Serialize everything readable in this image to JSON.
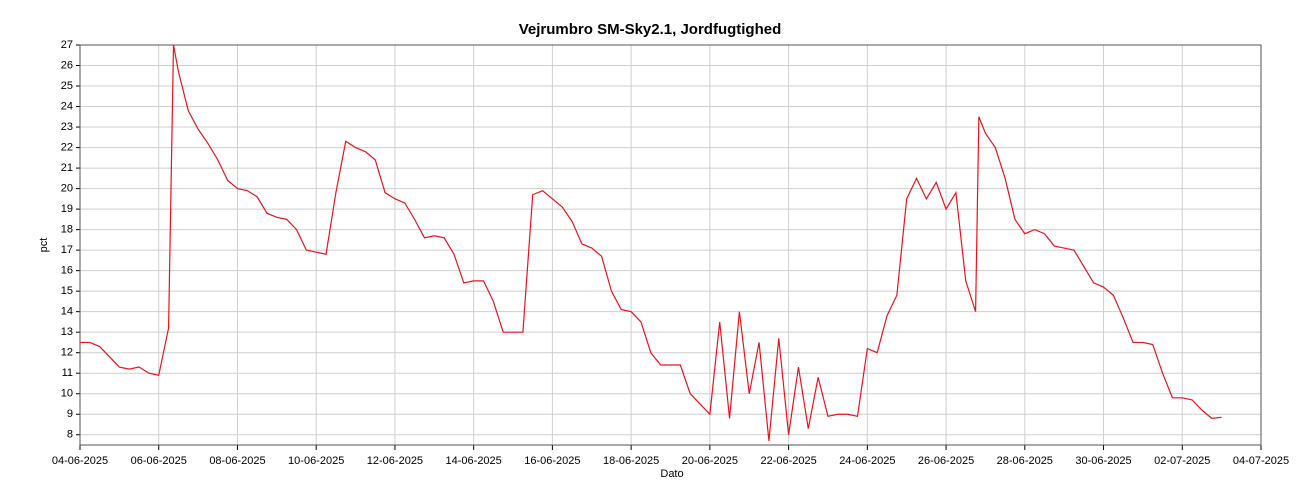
{
  "chart_data": {
    "type": "line",
    "title": "Vejrumbro SM-Sky2.1, Jordfugtighed",
    "x_label": "Dato",
    "y_label": "pct",
    "x": [
      "04-06-2025 00:00",
      "04-06-2025 06:00",
      "04-06-2025 12:00",
      "04-06-2025 18:00",
      "05-06-2025 00:00",
      "05-06-2025 06:00",
      "05-06-2025 12:00",
      "05-06-2025 18:00",
      "06-06-2025 00:00",
      "06-06-2025 06:00",
      "06-06-2025 09:00",
      "06-06-2025 12:00",
      "06-06-2025 18:00",
      "07-06-2025 00:00",
      "07-06-2025 06:00",
      "07-06-2025 12:00",
      "07-06-2025 18:00",
      "08-06-2025 00:00",
      "08-06-2025 06:00",
      "08-06-2025 12:00",
      "08-06-2025 18:00",
      "09-06-2025 00:00",
      "09-06-2025 06:00",
      "09-06-2025 12:00",
      "09-06-2025 18:00",
      "10-06-2025 00:00",
      "10-06-2025 06:00",
      "10-06-2025 12:00",
      "10-06-2025 18:00",
      "11-06-2025 00:00",
      "11-06-2025 06:00",
      "11-06-2025 12:00",
      "11-06-2025 18:00",
      "12-06-2025 00:00",
      "12-06-2025 06:00",
      "12-06-2025 12:00",
      "12-06-2025 18:00",
      "13-06-2025 00:00",
      "13-06-2025 06:00",
      "13-06-2025 12:00",
      "13-06-2025 18:00",
      "14-06-2025 00:00",
      "14-06-2025 06:00",
      "14-06-2025 12:00",
      "14-06-2025 18:00",
      "15-06-2025 00:00",
      "15-06-2025 06:00",
      "15-06-2025 12:00",
      "15-06-2025 18:00",
      "16-06-2025 00:00",
      "16-06-2025 06:00",
      "16-06-2025 12:00",
      "16-06-2025 18:00",
      "17-06-2025 00:00",
      "17-06-2025 06:00",
      "17-06-2025 12:00",
      "17-06-2025 18:00",
      "18-06-2025 00:00",
      "18-06-2025 06:00",
      "18-06-2025 12:00",
      "18-06-2025 18:00",
      "19-06-2025 00:00",
      "19-06-2025 06:00",
      "19-06-2025 12:00",
      "19-06-2025 18:00",
      "20-06-2025 00:00",
      "20-06-2025 06:00",
      "20-06-2025 12:00",
      "20-06-2025 18:00",
      "21-06-2025 00:00",
      "21-06-2025 06:00",
      "21-06-2025 12:00",
      "21-06-2025 18:00",
      "22-06-2025 00:00",
      "22-06-2025 06:00",
      "22-06-2025 12:00",
      "22-06-2025 18:00",
      "23-06-2025 00:00",
      "23-06-2025 06:00",
      "23-06-2025 12:00",
      "23-06-2025 18:00",
      "24-06-2025 00:00",
      "24-06-2025 06:00",
      "24-06-2025 12:00",
      "24-06-2025 18:00",
      "25-06-2025 00:00",
      "25-06-2025 06:00",
      "25-06-2025 12:00",
      "25-06-2025 18:00",
      "26-06-2025 00:00",
      "26-06-2025 06:00",
      "26-06-2025 12:00",
      "26-06-2025 18:00",
      "26-06-2025 20:00",
      "27-06-2025 00:00",
      "27-06-2025 06:00",
      "27-06-2025 12:00",
      "27-06-2025 18:00",
      "28-06-2025 00:00",
      "28-06-2025 06:00",
      "28-06-2025 12:00",
      "28-06-2025 18:00",
      "29-06-2025 00:00",
      "29-06-2025 06:00",
      "29-06-2025 12:00",
      "29-06-2025 18:00",
      "30-06-2025 00:00",
      "30-06-2025 06:00",
      "30-06-2025 12:00",
      "30-06-2025 18:00",
      "01-07-2025 00:00",
      "01-07-2025 06:00",
      "01-07-2025 12:00",
      "01-07-2025 18:00",
      "02-07-2025 00:00",
      "02-07-2025 06:00",
      "02-07-2025 12:00",
      "02-07-2025 18:00",
      "03-07-2025 00:00"
    ],
    "series": [
      {
        "color": "#e8141c",
        "values": [
          12.5,
          12.5,
          12.3,
          11.8,
          11.3,
          11.2,
          11.3,
          11.0,
          10.9,
          13.2,
          27.0,
          25.7,
          23.8,
          22.9,
          22.2,
          21.4,
          20.4,
          20.0,
          19.9,
          19.6,
          18.8,
          18.6,
          18.5,
          18.0,
          17.0,
          16.9,
          16.8,
          19.8,
          22.3,
          22.0,
          21.8,
          21.4,
          19.8,
          19.5,
          19.3,
          18.5,
          17.6,
          17.7,
          17.6,
          16.8,
          15.4,
          15.5,
          15.5,
          14.5,
          13.0,
          13.0,
          13.0,
          19.7,
          19.9,
          19.5,
          19.1,
          18.4,
          17.3,
          17.1,
          16.7,
          15.0,
          14.1,
          14.0,
          13.5,
          12.0,
          11.4,
          11.4,
          11.4,
          10.0,
          9.5,
          9.0,
          13.5,
          8.8,
          14.0,
          10.0,
          12.5,
          7.7,
          12.7,
          8.0,
          11.3,
          8.3,
          10.8,
          8.9,
          9.0,
          9.0,
          8.9,
          12.2,
          12.0,
          13.8,
          14.8,
          19.5,
          20.5,
          19.5,
          20.3,
          19.0,
          19.8,
          15.5,
          14.0,
          23.5,
          22.7,
          22.0,
          20.5,
          18.5,
          17.8,
          18.0,
          17.8,
          17.2,
          17.1,
          17.0,
          16.2,
          15.4,
          15.2,
          14.8,
          13.7,
          12.5,
          12.5,
          12.4,
          11.0,
          9.8,
          9.8,
          9.7,
          9.2,
          8.8,
          8.85
        ]
      }
    ],
    "xlim": [
      "04-06-2025 00:00",
      "04-07-2025 00:00"
    ],
    "xticks": [
      "04-06-2025",
      "06-06-2025",
      "08-06-2025",
      "10-06-2025",
      "12-06-2025",
      "14-06-2025",
      "16-06-2025",
      "18-06-2025",
      "20-06-2025",
      "22-06-2025",
      "24-06-2025",
      "26-06-2025",
      "28-06-2025",
      "30-06-2025",
      "02-07-2025",
      "04-07-2025"
    ],
    "ylim": [
      7.5,
      27
    ],
    "yticks": [
      8,
      9,
      10,
      11,
      12,
      13,
      14,
      15,
      16,
      17,
      18,
      19,
      20,
      21,
      22,
      23,
      24,
      25,
      26,
      27
    ],
    "grid": true
  }
}
